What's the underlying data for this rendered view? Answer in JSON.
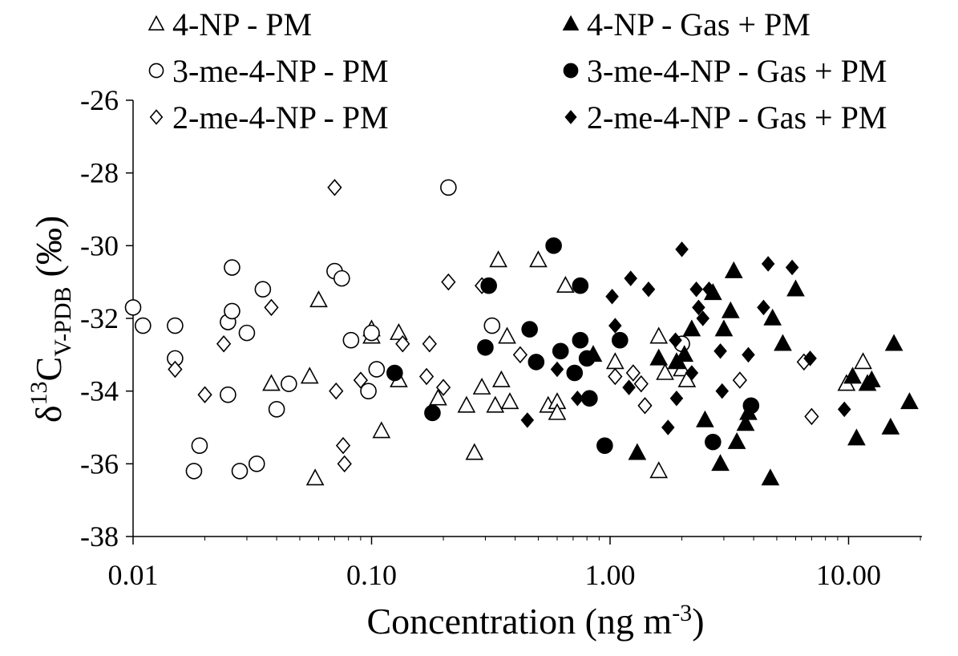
{
  "chart_data": {
    "type": "scatter",
    "title": "",
    "xlabel": "Concentration (ng m",
    "xlabel_sup": "-3",
    "xlabel_close": ")",
    "ylabel_delta": "δ",
    "ylabel_sup": "13",
    "ylabel_c": "C",
    "ylabel_sub": "V-PDB",
    "ylabel_unit": "(‰)",
    "x_scale": "log",
    "xlim": [
      0.01,
      20
    ],
    "ylim": [
      -38,
      -26
    ],
    "x_ticks": [
      "0.01",
      "0.10",
      "1.00",
      "10.00"
    ],
    "y_ticks": [
      "-26",
      "-28",
      "-30",
      "-32",
      "-34",
      "-36",
      "-38"
    ],
    "grid": false,
    "legend_position": "top",
    "series": [
      {
        "name": "4-NP - PM",
        "marker": "triangle",
        "filled": false,
        "points": [
          [
            0.038,
            -33.8
          ],
          [
            0.055,
            -33.6
          ],
          [
            0.058,
            -36.4
          ],
          [
            0.06,
            -31.5
          ],
          [
            0.1,
            -32.3
          ],
          [
            0.1,
            -32.5
          ],
          [
            0.11,
            -35.1
          ],
          [
            0.13,
            -32.4
          ],
          [
            0.13,
            -33.7
          ],
          [
            0.19,
            -34.2
          ],
          [
            0.25,
            -34.4
          ],
          [
            0.27,
            -35.7
          ],
          [
            0.29,
            -33.9
          ],
          [
            0.33,
            -34.4
          ],
          [
            0.34,
            -30.4
          ],
          [
            0.35,
            -33.7
          ],
          [
            0.37,
            -32.5
          ],
          [
            0.38,
            -34.3
          ],
          [
            0.5,
            -30.4
          ],
          [
            0.55,
            -34.4
          ],
          [
            0.6,
            -34.3
          ],
          [
            0.6,
            -34.6
          ],
          [
            0.65,
            -31.1
          ],
          [
            1.05,
            -33.2
          ],
          [
            1.6,
            -32.5
          ],
          [
            1.6,
            -36.2
          ],
          [
            1.7,
            -33.5
          ],
          [
            2.0,
            -33.4
          ],
          [
            2.1,
            -33.7
          ],
          [
            9.8,
            -33.8
          ],
          [
            11.5,
            -33.2
          ]
        ]
      },
      {
        "name": "3-me-4-NP - PM",
        "marker": "circle",
        "filled": false,
        "points": [
          [
            0.01,
            -31.7
          ],
          [
            0.011,
            -32.2
          ],
          [
            0.015,
            -32.2
          ],
          [
            0.015,
            -33.1
          ],
          [
            0.018,
            -36.2
          ],
          [
            0.019,
            -35.5
          ],
          [
            0.025,
            -32.1
          ],
          [
            0.025,
            -34.1
          ],
          [
            0.026,
            -30.6
          ],
          [
            0.026,
            -31.8
          ],
          [
            0.028,
            -36.2
          ],
          [
            0.03,
            -32.4
          ],
          [
            0.033,
            -36.0
          ],
          [
            0.035,
            -31.2
          ],
          [
            0.04,
            -34.5
          ],
          [
            0.045,
            -33.8
          ],
          [
            0.07,
            -30.7
          ],
          [
            0.075,
            -30.9
          ],
          [
            0.082,
            -32.6
          ],
          [
            0.097,
            -34.0
          ],
          [
            0.1,
            -32.4
          ],
          [
            0.105,
            -33.4
          ],
          [
            0.21,
            -28.4
          ],
          [
            0.32,
            -32.2
          ],
          [
            2.0,
            -32.7
          ]
        ]
      },
      {
        "name": "2-me-4-NP - PM",
        "marker": "diamond",
        "filled": false,
        "points": [
          [
            0.015,
            -33.4
          ],
          [
            0.02,
            -34.1
          ],
          [
            0.024,
            -32.7
          ],
          [
            0.038,
            -31.7
          ],
          [
            0.07,
            -28.4
          ],
          [
            0.071,
            -34.0
          ],
          [
            0.076,
            -35.5
          ],
          [
            0.077,
            -36.0
          ],
          [
            0.09,
            -33.7
          ],
          [
            0.135,
            -32.7
          ],
          [
            0.17,
            -33.6
          ],
          [
            0.175,
            -32.7
          ],
          [
            0.2,
            -33.9
          ],
          [
            0.21,
            -31.0
          ],
          [
            0.29,
            -31.1
          ],
          [
            0.42,
            -33.0
          ],
          [
            1.05,
            -33.6
          ],
          [
            1.25,
            -33.5
          ],
          [
            1.35,
            -33.8
          ],
          [
            1.4,
            -34.4
          ],
          [
            3.5,
            -33.7
          ],
          [
            6.5,
            -33.2
          ],
          [
            7.0,
            -34.7
          ]
        ]
      },
      {
        "name": "4-NP - Gas + PM",
        "marker": "triangle",
        "filled": true,
        "points": [
          [
            0.85,
            -33.0
          ],
          [
            1.3,
            -35.7
          ],
          [
            1.6,
            -33.1
          ],
          [
            1.9,
            -33.2
          ],
          [
            2.05,
            -33.0
          ],
          [
            2.2,
            -32.3
          ],
          [
            2.5,
            -34.8
          ],
          [
            2.7,
            -31.3
          ],
          [
            2.9,
            -36.0
          ],
          [
            3.0,
            -32.3
          ],
          [
            3.2,
            -31.8
          ],
          [
            3.3,
            -30.7
          ],
          [
            3.4,
            -35.4
          ],
          [
            3.7,
            -34.9
          ],
          [
            3.8,
            -34.6
          ],
          [
            4.7,
            -36.4
          ],
          [
            4.8,
            -32.0
          ],
          [
            5.3,
            -32.7
          ],
          [
            6.0,
            -31.2
          ],
          [
            10.4,
            -33.6
          ],
          [
            10.8,
            -35.3
          ],
          [
            12.0,
            -33.8
          ],
          [
            12.5,
            -33.7
          ],
          [
            15.0,
            -35.0
          ],
          [
            15.5,
            -32.7
          ],
          [
            18.0,
            -34.3
          ]
        ]
      },
      {
        "name": "3-me-4-NP - Gas + PM",
        "marker": "circle",
        "filled": true,
        "points": [
          [
            0.125,
            -33.5
          ],
          [
            0.18,
            -34.6
          ],
          [
            0.3,
            -32.8
          ],
          [
            0.31,
            -31.1
          ],
          [
            0.46,
            -32.3
          ],
          [
            0.49,
            -33.2
          ],
          [
            0.58,
            -30.0
          ],
          [
            0.62,
            -32.9
          ],
          [
            0.71,
            -33.5
          ],
          [
            0.75,
            -31.1
          ],
          [
            0.75,
            -32.6
          ],
          [
            0.8,
            -33.1
          ],
          [
            0.82,
            -34.2
          ],
          [
            0.95,
            -35.5
          ],
          [
            1.1,
            -32.6
          ],
          [
            2.7,
            -35.4
          ],
          [
            3.9,
            -34.4
          ]
        ]
      },
      {
        "name": "2-me-4-NP - Gas + PM",
        "marker": "diamond",
        "filled": true,
        "points": [
          [
            0.45,
            -34.8
          ],
          [
            0.6,
            -33.4
          ],
          [
            0.73,
            -34.2
          ],
          [
            1.02,
            -31.4
          ],
          [
            1.05,
            -32.2
          ],
          [
            1.2,
            -33.9
          ],
          [
            1.22,
            -30.9
          ],
          [
            1.45,
            -31.2
          ],
          [
            1.75,
            -35.0
          ],
          [
            1.88,
            -32.6
          ],
          [
            1.9,
            -34.2
          ],
          [
            2.0,
            -30.1
          ],
          [
            2.2,
            -33.5
          ],
          [
            2.3,
            -31.2
          ],
          [
            2.35,
            -31.7
          ],
          [
            2.45,
            -32.0
          ],
          [
            2.6,
            -31.2
          ],
          [
            2.9,
            -32.9
          ],
          [
            2.95,
            -34.0
          ],
          [
            3.8,
            -33.0
          ],
          [
            4.4,
            -31.7
          ],
          [
            4.6,
            -30.5
          ],
          [
            5.8,
            -30.6
          ],
          [
            6.9,
            -33.1
          ],
          [
            9.6,
            -34.5
          ]
        ]
      }
    ]
  }
}
